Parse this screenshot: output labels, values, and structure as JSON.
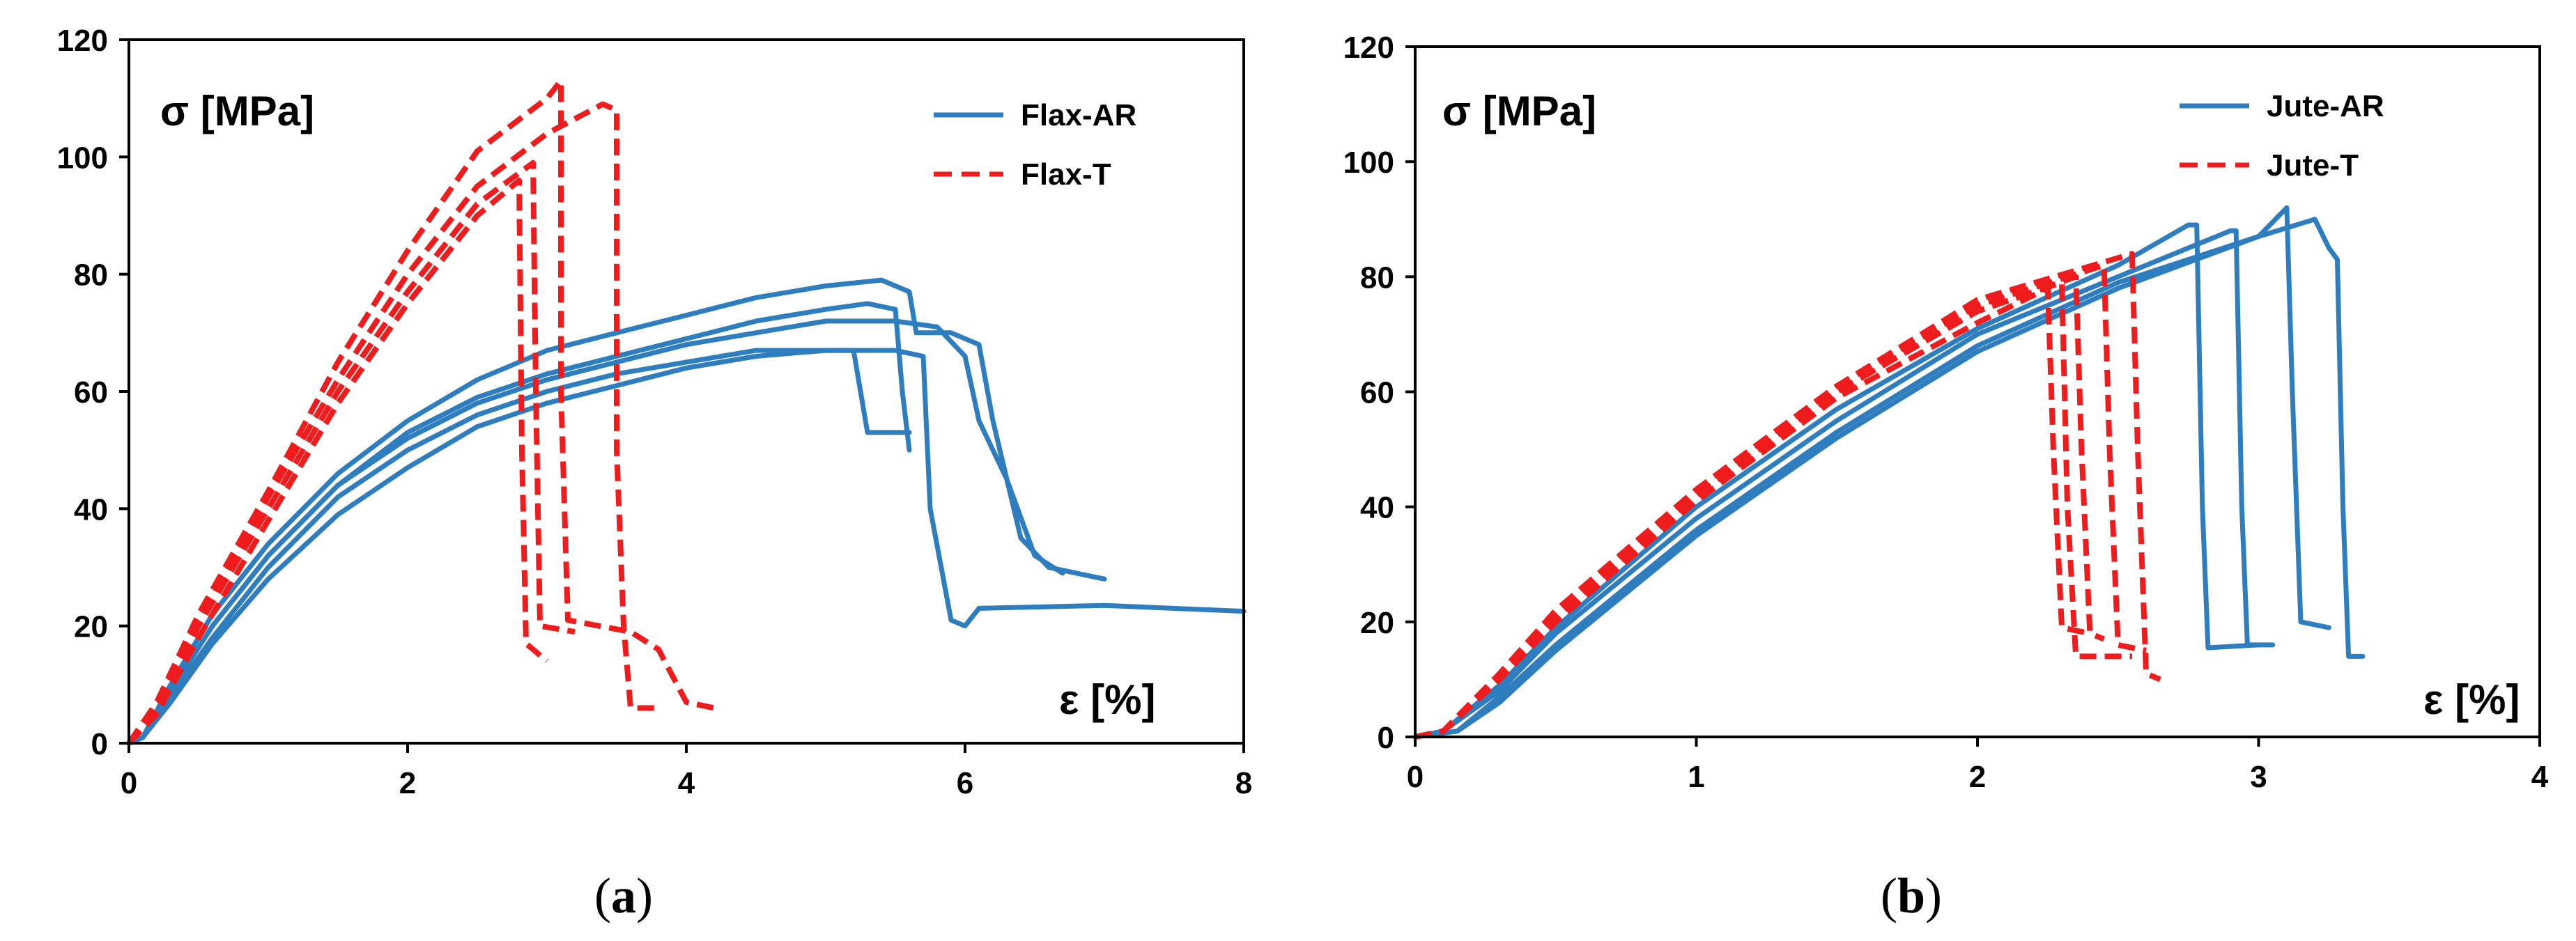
{
  "colors": {
    "ar": "#2E7DBE",
    "t": "#EE1C1C",
    "axis": "#000000"
  },
  "chart_data": [
    {
      "type": "line",
      "panel_prefix": "(",
      "panel_letter": "a",
      "panel_suffix": ")",
      "ylabel": "σ [MPa]",
      "xlabel": "ε [%]",
      "xlim": [
        0,
        8
      ],
      "ylim": [
        0,
        120
      ],
      "xticks": [
        "0",
        "2",
        "4",
        "6",
        "8"
      ],
      "yticks": [
        "0",
        "20",
        "40",
        "60",
        "80",
        "100",
        "120"
      ],
      "legend_position": "top-right",
      "legend": [
        "Flax-AR",
        "Flax-T"
      ],
      "series": [
        {
          "name": "Flax-AR",
          "style": "solid",
          "points": [
            [
              0,
              0
            ],
            [
              0.1,
              1
            ],
            [
              0.3,
              9
            ],
            [
              0.6,
              20
            ],
            [
              1.0,
              32
            ],
            [
              1.5,
              44
            ],
            [
              2.0,
              53
            ],
            [
              2.5,
              59
            ],
            [
              3.0,
              63
            ],
            [
              3.5,
              66
            ],
            [
              4.0,
              69
            ],
            [
              4.5,
              72
            ],
            [
              5.0,
              74
            ],
            [
              5.3,
              75
            ],
            [
              5.5,
              74
            ],
            [
              5.55,
              60
            ],
            [
              5.6,
              50
            ]
          ]
        },
        {
          "name": "Flax-AR",
          "style": "solid",
          "points": [
            [
              0,
              0
            ],
            [
              0.1,
              1
            ],
            [
              0.3,
              8
            ],
            [
              0.6,
              18
            ],
            [
              1.0,
              30
            ],
            [
              1.5,
              42
            ],
            [
              2.0,
              50
            ],
            [
              2.5,
              56
            ],
            [
              3.0,
              60
            ],
            [
              3.5,
              63
            ],
            [
              4.0,
              65
            ],
            [
              4.5,
              67
            ],
            [
              5.0,
              67
            ],
            [
              5.2,
              67
            ],
            [
              5.25,
              60
            ],
            [
              5.3,
              53
            ],
            [
              5.6,
              53
            ]
          ]
        },
        {
          "name": "Flax-AR",
          "style": "solid",
          "points": [
            [
              0,
              0
            ],
            [
              0.1,
              1
            ],
            [
              0.3,
              7
            ],
            [
              0.6,
              17
            ],
            [
              1.0,
              28
            ],
            [
              1.5,
              39
            ],
            [
              2.0,
              47
            ],
            [
              2.5,
              54
            ],
            [
              3.0,
              58
            ],
            [
              3.5,
              61
            ],
            [
              4.0,
              64
            ],
            [
              4.5,
              66
            ],
            [
              5.0,
              67
            ],
            [
              5.5,
              67
            ],
            [
              5.7,
              66
            ],
            [
              5.75,
              40
            ],
            [
              5.9,
              21
            ],
            [
              6.0,
              20
            ],
            [
              6.1,
              23
            ],
            [
              7.0,
              23.5
            ],
            [
              8.0,
              22.5
            ]
          ]
        },
        {
          "name": "Flax-AR",
          "style": "solid",
          "points": [
            [
              0,
              0
            ],
            [
              0.1,
              1
            ],
            [
              0.3,
              10
            ],
            [
              0.6,
              22
            ],
            [
              1.0,
              34
            ],
            [
              1.5,
              46
            ],
            [
              2.0,
              55
            ],
            [
              2.5,
              62
            ],
            [
              3.0,
              67
            ],
            [
              3.5,
              70
            ],
            [
              4.0,
              73
            ],
            [
              4.5,
              76
            ],
            [
              5.0,
              78
            ],
            [
              5.4,
              79
            ],
            [
              5.6,
              77
            ],
            [
              5.65,
              70
            ],
            [
              5.9,
              70
            ],
            [
              6.1,
              68
            ],
            [
              6.2,
              55
            ],
            [
              6.4,
              35
            ],
            [
              6.6,
              30
            ],
            [
              7.0,
              28
            ]
          ]
        },
        {
          "name": "Flax-AR",
          "style": "solid",
          "points": [
            [
              0,
              0
            ],
            [
              0.1,
              1
            ],
            [
              0.3,
              9
            ],
            [
              0.6,
              20
            ],
            [
              1.0,
              32
            ],
            [
              1.5,
              44
            ],
            [
              2.0,
              52
            ],
            [
              2.5,
              58
            ],
            [
              3.0,
              62
            ],
            [
              3.5,
              65
            ],
            [
              4.0,
              68
            ],
            [
              4.5,
              70
            ],
            [
              5.0,
              72
            ],
            [
              5.5,
              72
            ],
            [
              5.8,
              71
            ],
            [
              6.0,
              66
            ],
            [
              6.1,
              55
            ],
            [
              6.3,
              45
            ],
            [
              6.5,
              32
            ],
            [
              6.7,
              29
            ]
          ]
        },
        {
          "name": "Flax-T",
          "style": "dashed",
          "points": [
            [
              0,
              0
            ],
            [
              0.2,
              5
            ],
            [
              0.5,
              18
            ],
            [
              1.0,
              38
            ],
            [
              1.5,
              58
            ],
            [
              2.0,
              75
            ],
            [
              2.5,
              90
            ],
            [
              2.8,
              96
            ],
            [
              2.82,
              50
            ],
            [
              2.85,
              17
            ],
            [
              3.0,
              14
            ]
          ]
        },
        {
          "name": "Flax-T",
          "style": "dashed",
          "points": [
            [
              0,
              0
            ],
            [
              0.2,
              6
            ],
            [
              0.5,
              20
            ],
            [
              1.0,
              40
            ],
            [
              1.5,
              60
            ],
            [
              2.0,
              77
            ],
            [
              2.5,
              92
            ],
            [
              2.9,
              99
            ],
            [
              2.92,
              60
            ],
            [
              2.95,
              20
            ],
            [
              3.2,
              19
            ]
          ]
        },
        {
          "name": "Flax-T",
          "style": "dashed",
          "points": [
            [
              0,
              0
            ],
            [
              0.2,
              7
            ],
            [
              0.5,
              22
            ],
            [
              1.0,
              43
            ],
            [
              1.5,
              65
            ],
            [
              2.0,
              84
            ],
            [
              2.5,
              101
            ],
            [
              3.0,
              110
            ],
            [
              3.1,
              113
            ],
            [
              3.1,
              60
            ],
            [
              3.15,
              21
            ],
            [
              3.6,
              19
            ],
            [
              3.8,
              16
            ],
            [
              4.0,
              7
            ],
            [
              4.2,
              6
            ]
          ]
        },
        {
          "name": "Flax-T",
          "style": "dashed",
          "points": [
            [
              0,
              0
            ],
            [
              0.2,
              6
            ],
            [
              0.5,
              21
            ],
            [
              1.0,
              42
            ],
            [
              1.5,
              62
            ],
            [
              2.0,
              80
            ],
            [
              2.5,
              95
            ],
            [
              3.0,
              104
            ],
            [
              3.4,
              109
            ],
            [
              3.5,
              108
            ],
            [
              3.5,
              50
            ],
            [
              3.55,
              20
            ],
            [
              3.6,
              6
            ],
            [
              3.8,
              6
            ]
          ]
        }
      ]
    },
    {
      "type": "line",
      "panel_prefix": "(",
      "panel_letter": "b",
      "panel_suffix": ")",
      "ylabel": "σ [MPa]",
      "xlabel": "ε [%]",
      "xlim": [
        0,
        4
      ],
      "ylim": [
        0,
        120
      ],
      "xticks": [
        "0",
        "1",
        "2",
        "3",
        "4"
      ],
      "yticks": [
        "0",
        "20",
        "40",
        "60",
        "80",
        "100",
        "120"
      ],
      "legend_position": "top-right",
      "legend": [
        "Jute-AR",
        "Jute-T"
      ],
      "series": [
        {
          "name": "Jute-AR",
          "style": "solid",
          "points": [
            [
              0,
              0
            ],
            [
              0.1,
              1
            ],
            [
              0.3,
              9
            ],
            [
              0.5,
              19
            ],
            [
              1.0,
              40
            ],
            [
              1.5,
              57
            ],
            [
              2.0,
              71
            ],
            [
              2.5,
              82
            ],
            [
              2.75,
              89
            ],
            [
              2.78,
              89
            ],
            [
              2.8,
              40
            ],
            [
              2.82,
              15.5
            ],
            [
              3.0,
              16
            ]
          ]
        },
        {
          "name": "Jute-AR",
          "style": "solid",
          "points": [
            [
              0,
              0
            ],
            [
              0.1,
              1
            ],
            [
              0.3,
              8
            ],
            [
              0.5,
              18
            ],
            [
              1.0,
              38
            ],
            [
              1.5,
              55
            ],
            [
              2.0,
              70
            ],
            [
              2.5,
              80
            ],
            [
              2.9,
              88
            ],
            [
              2.92,
              88
            ],
            [
              2.94,
              40
            ],
            [
              2.96,
              16
            ],
            [
              3.05,
              16
            ]
          ]
        },
        {
          "name": "Jute-AR",
          "style": "solid",
          "points": [
            [
              0,
              0
            ],
            [
              0.15,
              1
            ],
            [
              0.3,
              6
            ],
            [
              0.5,
              15
            ],
            [
              1.0,
              35
            ],
            [
              1.5,
              52
            ],
            [
              2.0,
              67
            ],
            [
              2.5,
              78
            ],
            [
              3.0,
              87
            ],
            [
              3.1,
              92
            ],
            [
              3.12,
              60
            ],
            [
              3.15,
              20
            ],
            [
              3.25,
              19
            ]
          ]
        },
        {
          "name": "Jute-AR",
          "style": "solid",
          "points": [
            [
              0,
              0
            ],
            [
              0.15,
              1
            ],
            [
              0.3,
              7
            ],
            [
              0.5,
              16
            ],
            [
              1.0,
              36
            ],
            [
              1.5,
              53
            ],
            [
              2.0,
              68
            ],
            [
              2.5,
              79
            ],
            [
              3.0,
              87
            ],
            [
              3.2,
              90
            ],
            [
              3.25,
              85
            ],
            [
              3.28,
              83
            ],
            [
              3.3,
              40
            ],
            [
              3.32,
              14
            ],
            [
              3.37,
              14
            ]
          ]
        },
        {
          "name": "Jute-T",
          "style": "dashed",
          "points": [
            [
              0,
              0
            ],
            [
              0.1,
              1
            ],
            [
              0.3,
              10
            ],
            [
              0.5,
              20
            ],
            [
              1.0,
              41
            ],
            [
              1.5,
              59
            ],
            [
              2.0,
              72
            ],
            [
              2.25,
              78
            ],
            [
              2.27,
              50
            ],
            [
              2.3,
              19
            ],
            [
              2.4,
              18
            ]
          ]
        },
        {
          "name": "Jute-T",
          "style": "dashed",
          "points": [
            [
              0,
              0
            ],
            [
              0.1,
              1
            ],
            [
              0.3,
              10
            ],
            [
              0.5,
              21
            ],
            [
              1.0,
              42
            ],
            [
              1.5,
              60
            ],
            [
              2.0,
              74
            ],
            [
              2.35,
              80
            ],
            [
              2.37,
              50
            ],
            [
              2.4,
              18
            ],
            [
              2.45,
              17
            ]
          ]
        },
        {
          "name": "Jute-T",
          "style": "dashed",
          "points": [
            [
              0,
              0
            ],
            [
              0.1,
              1
            ],
            [
              0.3,
              11
            ],
            [
              0.5,
              22
            ],
            [
              1.0,
              43
            ],
            [
              1.5,
              61
            ],
            [
              2.0,
              75
            ],
            [
              2.45,
              82
            ],
            [
              2.47,
              50
            ],
            [
              2.5,
              16
            ],
            [
              2.6,
              15
            ]
          ]
        },
        {
          "name": "Jute-T",
          "style": "dashed",
          "points": [
            [
              0,
              0
            ],
            [
              0.1,
              1
            ],
            [
              0.3,
              11
            ],
            [
              0.5,
              22
            ],
            [
              1.0,
              43
            ],
            [
              1.5,
              61
            ],
            [
              2.0,
              76
            ],
            [
              2.55,
              84
            ],
            [
              2.57,
              50
            ],
            [
              2.6,
              11
            ],
            [
              2.65,
              10
            ]
          ]
        },
        {
          "name": "Jute-T",
          "style": "dashed",
          "points": [
            [
              0,
              0
            ],
            [
              0.1,
              1
            ],
            [
              0.3,
              10
            ],
            [
              0.5,
              21
            ],
            [
              1.0,
              42
            ],
            [
              1.5,
              60
            ],
            [
              2.0,
              74
            ],
            [
              2.3,
              79
            ],
            [
              2.32,
              40
            ],
            [
              2.35,
              14
            ],
            [
              2.55,
              14
            ]
          ]
        }
      ]
    }
  ]
}
